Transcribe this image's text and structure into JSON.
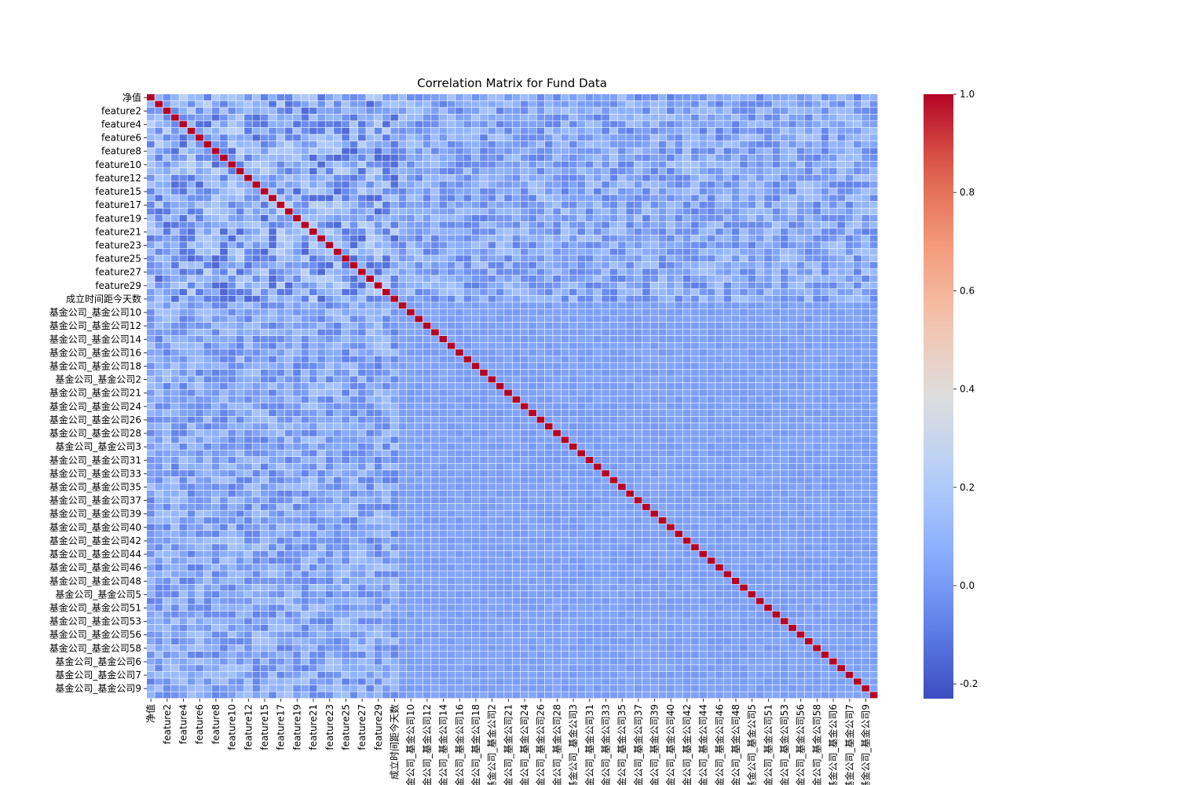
{
  "chart_data": {
    "type": "heatmap",
    "title": "Correlation Matrix for Fund Data",
    "xlabel": "",
    "ylabel": "",
    "grid": false,
    "colormap": "coolwarm",
    "colorbar": {
      "min": -0.23,
      "max": 1.0,
      "ticks": [
        -0.2,
        0.0,
        0.2,
        0.4,
        0.6,
        0.8,
        1.0
      ],
      "tick_labels": [
        "-0.2",
        "0.0",
        "0.2",
        "0.4",
        "0.6",
        "0.8",
        "1.0"
      ],
      "placement": "right"
    },
    "matrix_size": 90,
    "diagonal_value": 1.0,
    "tick_labels": [
      {
        "index": 0,
        "label": "净值"
      },
      {
        "index": 2,
        "label": "feature2"
      },
      {
        "index": 4,
        "label": "feature4"
      },
      {
        "index": 6,
        "label": "feature6"
      },
      {
        "index": 8,
        "label": "feature8"
      },
      {
        "index": 10,
        "label": "feature10"
      },
      {
        "index": 12,
        "label": "feature12"
      },
      {
        "index": 14,
        "label": "feature15"
      },
      {
        "index": 16,
        "label": "feature17"
      },
      {
        "index": 18,
        "label": "feature19"
      },
      {
        "index": 20,
        "label": "feature21"
      },
      {
        "index": 22,
        "label": "feature23"
      },
      {
        "index": 24,
        "label": "feature25"
      },
      {
        "index": 26,
        "label": "feature27"
      },
      {
        "index": 28,
        "label": "feature29"
      },
      {
        "index": 30,
        "label": "成立时间距今天数"
      },
      {
        "index": 32,
        "label": "基金公司_基金公司10"
      },
      {
        "index": 34,
        "label": "基金公司_基金公司12"
      },
      {
        "index": 36,
        "label": "基金公司_基金公司14"
      },
      {
        "index": 38,
        "label": "基金公司_基金公司16"
      },
      {
        "index": 40,
        "label": "基金公司_基金公司18"
      },
      {
        "index": 42,
        "label": "基金公司_基金公司2"
      },
      {
        "index": 44,
        "label": "基金公司_基金公司21"
      },
      {
        "index": 46,
        "label": "基金公司_基金公司24"
      },
      {
        "index": 48,
        "label": "基金公司_基金公司26"
      },
      {
        "index": 50,
        "label": "基金公司_基金公司28"
      },
      {
        "index": 52,
        "label": "基金公司_基金公司3"
      },
      {
        "index": 54,
        "label": "基金公司_基金公司31"
      },
      {
        "index": 56,
        "label": "基金公司_基金公司33"
      },
      {
        "index": 58,
        "label": "基金公司_基金公司35"
      },
      {
        "index": 60,
        "label": "基金公司_基金公司37"
      },
      {
        "index": 62,
        "label": "基金公司_基金公司39"
      },
      {
        "index": 64,
        "label": "基金公司_基金公司40"
      },
      {
        "index": 66,
        "label": "基金公司_基金公司42"
      },
      {
        "index": 68,
        "label": "基金公司_基金公司44"
      },
      {
        "index": 70,
        "label": "基金公司_基金公司46"
      },
      {
        "index": 72,
        "label": "基金公司_基金公司48"
      },
      {
        "index": 74,
        "label": "基金公司_基金公司5"
      },
      {
        "index": 76,
        "label": "基金公司_基金公司51"
      },
      {
        "index": 78,
        "label": "基金公司_基金公司53"
      },
      {
        "index": 80,
        "label": "基金公司_基金公司56"
      },
      {
        "index": 82,
        "label": "基金公司_基金公司58"
      },
      {
        "index": 84,
        "label": "基金公司_基金公司6"
      },
      {
        "index": 86,
        "label": "基金公司_基金公司7"
      },
      {
        "index": 88,
        "label": "基金公司_基金公司9"
      }
    ],
    "values_note": "",
    "off_diagonal_range": {
      "features_block": [
        -0.15,
        0.25
      ],
      "company_block": [
        0.0,
        0.05
      ]
    }
  }
}
